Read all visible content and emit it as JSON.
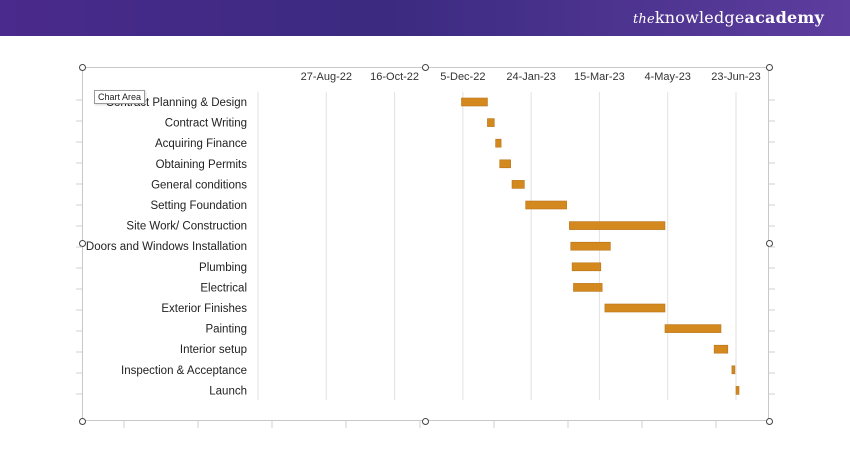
{
  "header": {
    "brand_the": "the",
    "brand_knowledge": "knowledge",
    "brand_academy": "academy",
    "background": "#4a2a8c"
  },
  "tooltip": {
    "label": "Chart Area"
  },
  "chart_data": {
    "type": "bar",
    "orientation": "horizontal",
    "stacked_gantt": true,
    "title": "",
    "xlabel": "",
    "ylabel": "",
    "x_axis_position": "top",
    "gridlines": "vertical",
    "legend": "none",
    "bar_color": "#d4891f",
    "x_ticks": [
      "27-Aug-22",
      "16-Oct-22",
      "5-Dec-22",
      "24-Jan-23",
      "15-Mar-23",
      "4-May-23",
      "23-Jun-23"
    ],
    "xlim": [
      "2022-07-08",
      "2023-06-23"
    ],
    "tasks": [
      {
        "name": "Contract Planning & Design",
        "start": "2022-12-04",
        "end": "2022-12-23"
      },
      {
        "name": "Contract Writing",
        "start": "2022-12-23",
        "end": "2022-12-28"
      },
      {
        "name": "Acquiring Finance",
        "start": "2022-12-29",
        "end": "2023-01-02"
      },
      {
        "name": "Obtaining Permits",
        "start": "2023-01-01",
        "end": "2023-01-09"
      },
      {
        "name": "General conditions",
        "start": "2023-01-10",
        "end": "2023-01-19"
      },
      {
        "name": "Setting Foundation",
        "start": "2023-01-20",
        "end": "2023-02-19"
      },
      {
        "name": "Site Work/ Construction",
        "start": "2023-02-21",
        "end": "2023-05-02"
      },
      {
        "name": "Doors and Windows Installation",
        "start": "2023-02-22",
        "end": "2023-03-23"
      },
      {
        "name": "Plumbing",
        "start": "2023-02-23",
        "end": "2023-03-16"
      },
      {
        "name": "Electrical",
        "start": "2023-02-24",
        "end": "2023-03-17"
      },
      {
        "name": "Exterior Finishes",
        "start": "2023-03-19",
        "end": "2023-05-02"
      },
      {
        "name": "Painting",
        "start": "2023-05-02",
        "end": "2023-06-12"
      },
      {
        "name": "Interior setup",
        "start": "2023-06-07",
        "end": "2023-06-17"
      },
      {
        "name": "Inspection & Acceptance",
        "start": "2023-06-20",
        "end": "2023-06-22"
      },
      {
        "name": "Launch",
        "start": "2023-06-23",
        "end": "2023-06-25"
      }
    ]
  }
}
